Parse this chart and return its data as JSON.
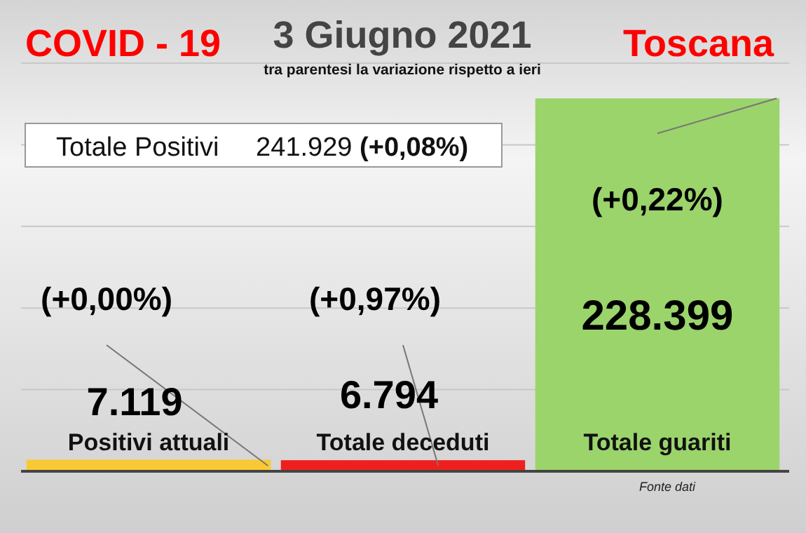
{
  "chart_data": {
    "type": "bar",
    "title": "3 Giugno 2021",
    "subtitle": "tra parentesi la variazione rispetto a ieri",
    "categories": [
      "Positivi attuali",
      "Totale deceduti",
      "Totale guariti"
    ],
    "values": [
      7119,
      6794,
      228399
    ],
    "colors": [
      "#f9c935",
      "#f01f1f",
      "#9bd46b"
    ],
    "value_labels": [
      "7.119",
      "6.794",
      "228.399"
    ],
    "ylim": [
      0,
      250000
    ],
    "yticks": [
      {
        "value": 0,
        "label": null
      },
      {
        "value": 50000,
        "label": null
      },
      {
        "value": 100000,
        "label": null
      },
      {
        "value": 150000,
        "label": null
      },
      {
        "value": 200000,
        "label": null
      },
      {
        "value": 250000,
        "label": null
      }
    ],
    "tick_labels": "x",
    "grid": "y",
    "annotations": [
      "COVID - 19",
      "Toscana",
      "Totale Positivi     241.929 (+0,08%)",
      "(+0,00%)",
      "(+0,97%)",
      "(+0,22%)",
      "Fonte dati"
    ]
  }
}
